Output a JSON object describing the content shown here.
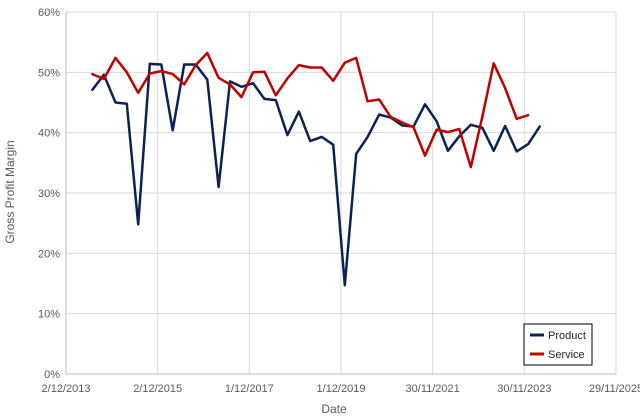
{
  "chart_data": {
    "type": "line",
    "title": "",
    "xlabel": "Date",
    "ylabel": "Gross Profit Margin",
    "x_ticks": [
      "2/12/2013",
      "2/12/2015",
      "1/12/2017",
      "1/12/2019",
      "30/11/2021",
      "30/11/2023",
      "29/11/2025"
    ],
    "x_range": [
      "2013-12-02",
      "2025-11-29"
    ],
    "y_ticks": [
      "0%",
      "10%",
      "20%",
      "30%",
      "40%",
      "50%",
      "60%"
    ],
    "ylim": [
      0,
      60
    ],
    "grid": "vertical and horizontal",
    "legend_position": "bottom-right",
    "series": [
      {
        "name": "Product",
        "color": "#0c2155",
        "points": [
          [
            "2014-06-30",
            47.1
          ],
          [
            "2014-09-30",
            49.6
          ],
          [
            "2014-12-31",
            45.0
          ],
          [
            "2015-03-31",
            44.8
          ],
          [
            "2015-06-30",
            24.8
          ],
          [
            "2015-09-30",
            51.4
          ],
          [
            "2015-12-31",
            51.3
          ],
          [
            "2016-03-31",
            40.4
          ],
          [
            "2016-06-30",
            51.3
          ],
          [
            "2016-09-30",
            51.3
          ],
          [
            "2016-12-31",
            48.8
          ],
          [
            "2017-03-31",
            31.0
          ],
          [
            "2017-06-30",
            48.5
          ],
          [
            "2017-09-30",
            47.6
          ],
          [
            "2017-12-31",
            48.2
          ],
          [
            "2018-03-31",
            45.6
          ],
          [
            "2018-06-30",
            45.4
          ],
          [
            "2018-09-30",
            39.6
          ],
          [
            "2018-12-31",
            43.5
          ],
          [
            "2019-03-31",
            38.6
          ],
          [
            "2019-06-30",
            39.3
          ],
          [
            "2019-09-30",
            38.0
          ],
          [
            "2019-12-31",
            14.7
          ],
          [
            "2020-03-31",
            36.5
          ],
          [
            "2020-06-30",
            39.3
          ],
          [
            "2020-09-30",
            43.0
          ],
          [
            "2020-12-31",
            42.5
          ],
          [
            "2021-03-31",
            41.2
          ],
          [
            "2021-06-30",
            41.0
          ],
          [
            "2021-09-30",
            44.7
          ],
          [
            "2021-12-31",
            41.9
          ],
          [
            "2022-03-31",
            37.0
          ],
          [
            "2022-06-30",
            39.4
          ],
          [
            "2022-09-30",
            41.3
          ],
          [
            "2022-12-31",
            40.8
          ],
          [
            "2023-03-31",
            37.0
          ],
          [
            "2023-06-30",
            41.1
          ],
          [
            "2023-09-30",
            36.9
          ],
          [
            "2023-12-31",
            38.1
          ],
          [
            "2024-03-31",
            41.0
          ]
        ]
      },
      {
        "name": "Service",
        "color": "#c00000",
        "points": [
          [
            "2014-06-30",
            49.7
          ],
          [
            "2014-09-30",
            48.9
          ],
          [
            "2014-12-31",
            52.4
          ],
          [
            "2015-03-31",
            50.0
          ],
          [
            "2015-06-30",
            46.6
          ],
          [
            "2015-09-30",
            49.8
          ],
          [
            "2015-12-31",
            50.2
          ],
          [
            "2016-03-31",
            49.7
          ],
          [
            "2016-06-30",
            48.0
          ],
          [
            "2016-09-30",
            51.2
          ],
          [
            "2016-12-31",
            53.2
          ],
          [
            "2017-03-31",
            49.1
          ],
          [
            "2017-06-30",
            48.0
          ],
          [
            "2017-09-30",
            45.9
          ],
          [
            "2017-12-31",
            50.0
          ],
          [
            "2018-03-31",
            50.1
          ],
          [
            "2018-06-30",
            46.2
          ],
          [
            "2018-09-30",
            49.0
          ],
          [
            "2018-12-31",
            51.2
          ],
          [
            "2019-03-31",
            50.8
          ],
          [
            "2019-06-30",
            50.8
          ],
          [
            "2019-09-30",
            48.6
          ],
          [
            "2019-12-31",
            51.6
          ],
          [
            "2020-03-31",
            52.4
          ],
          [
            "2020-06-30",
            45.2
          ],
          [
            "2020-09-30",
            45.5
          ],
          [
            "2020-12-31",
            42.6
          ],
          [
            "2021-03-31",
            41.7
          ],
          [
            "2021-06-30",
            40.9
          ],
          [
            "2021-09-30",
            36.2
          ],
          [
            "2021-12-31",
            40.5
          ],
          [
            "2022-03-31",
            40.1
          ],
          [
            "2022-06-30",
            40.6
          ],
          [
            "2022-09-30",
            34.3
          ],
          [
            "2022-12-31",
            42.7
          ],
          [
            "2023-03-31",
            51.5
          ],
          [
            "2023-06-30",
            47.4
          ],
          [
            "2023-09-30",
            42.3
          ],
          [
            "2023-12-31",
            42.9
          ]
        ]
      }
    ]
  }
}
